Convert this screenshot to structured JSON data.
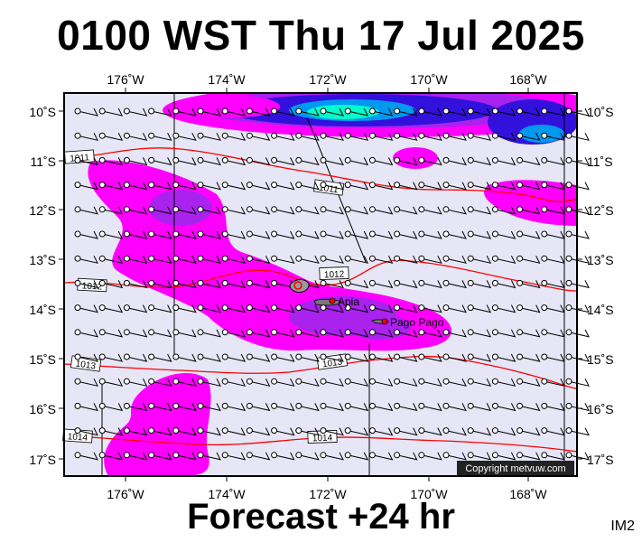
{
  "header": {
    "title": "0100 WST Thu 17 Jul 2025"
  },
  "footer": {
    "forecast": "Forecast +24 hr",
    "code": "IM2"
  },
  "map": {
    "lon_labels": [
      "176˚W",
      "174˚W",
      "172˚W",
      "170˚W",
      "168˚W"
    ],
    "lat_labels": [
      "10˚S",
      "11˚S",
      "12˚S",
      "13˚S",
      "14˚S",
      "15˚S",
      "16˚S",
      "17˚S"
    ],
    "copyright": "Copyright metvuw.com",
    "places": [
      {
        "name": "Apia"
      },
      {
        "name": "Pago Pago"
      }
    ],
    "isobar_labels": [
      "1011",
      "1011",
      "1012",
      "1012",
      "1013",
      "1013",
      "1014",
      "1014"
    ]
  },
  "colors": {
    "ocean": "#e6e6f6",
    "rain_light": "#ff00ff",
    "rain_moderate": "#aa22ee",
    "rain_heavy": "#3311dd",
    "rain_extreme": "#00ffcc",
    "isobar": "#ff0000"
  }
}
